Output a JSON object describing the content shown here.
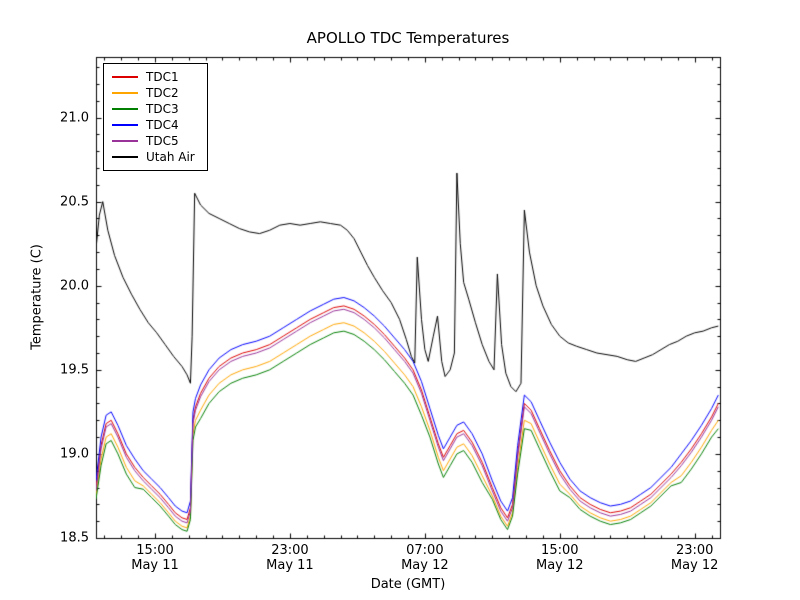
{
  "chart_data": {
    "type": "line",
    "title": "APOLLO TDC Temperatures",
    "xlabel": "Date (GMT)",
    "ylabel": "Temperature (C)",
    "x_encoding": "hours since May 11 00:00 GMT",
    "xlim": [
      11.5,
      48.5
    ],
    "ylim": [
      18.5,
      21.36
    ],
    "grid": false,
    "legend_position": "upper left",
    "yticks": [
      {
        "value": 18.5,
        "label": "18.5"
      },
      {
        "value": 19.0,
        "label": "19.0"
      },
      {
        "value": 19.5,
        "label": "19.5"
      },
      {
        "value": 20.0,
        "label": "20.0"
      },
      {
        "value": 20.5,
        "label": "20.5"
      },
      {
        "value": 21.0,
        "label": "21.0"
      }
    ],
    "xticks": [
      {
        "value": 15,
        "label": "15:00",
        "sublabel": "May 11"
      },
      {
        "value": 23,
        "label": "23:00",
        "sublabel": "May 11"
      },
      {
        "value": 31,
        "label": "07:00",
        "sublabel": "May 12"
      },
      {
        "value": 39,
        "label": "15:00",
        "sublabel": "May 12"
      },
      {
        "value": 47,
        "label": "23:00",
        "sublabel": "May 12"
      }
    ],
    "x_minor_tick_every_hours": 1,
    "y_minor_tick_every": 0.1,
    "shared_x": [
      11.5,
      11.8,
      12.1,
      12.4,
      12.8,
      13.3,
      13.8,
      14.3,
      14.8,
      15.3,
      15.8,
      16.2,
      16.6,
      16.9,
      17.1,
      17.25,
      17.4,
      17.7,
      18.2,
      18.8,
      19.5,
      20.2,
      21.0,
      21.8,
      22.6,
      23.4,
      24.2,
      25.0,
      25.6,
      26.2,
      26.8,
      27.4,
      28.0,
      28.6,
      29.2,
      29.8,
      30.3,
      30.8,
      31.3,
      31.8,
      32.1,
      32.5,
      32.9,
      33.3,
      33.8,
      34.4,
      35.0,
      35.5,
      35.9,
      36.2,
      36.5,
      36.9,
      37.3,
      37.8,
      38.4,
      39.0,
      39.6,
      40.2,
      40.8,
      41.4,
      42.0,
      42.6,
      43.2,
      43.8,
      44.4,
      45.0,
      45.6,
      46.2,
      46.8,
      47.4,
      48.0,
      48.4
    ],
    "series": [
      {
        "name": "TDC1",
        "color": "#dd0000",
        "y": [
          18.8,
          19.05,
          19.18,
          19.2,
          19.12,
          19.0,
          18.92,
          18.86,
          18.81,
          18.76,
          18.7,
          18.65,
          18.62,
          18.61,
          18.68,
          19.2,
          19.28,
          19.36,
          19.45,
          19.52,
          19.57,
          19.6,
          19.62,
          19.65,
          19.7,
          19.75,
          19.8,
          19.84,
          19.87,
          19.88,
          19.86,
          19.82,
          19.77,
          19.71,
          19.64,
          19.57,
          19.5,
          19.38,
          19.22,
          19.06,
          18.98,
          19.05,
          19.12,
          19.14,
          19.07,
          18.95,
          18.8,
          18.68,
          18.62,
          18.7,
          19.0,
          19.3,
          19.26,
          19.15,
          19.02,
          18.9,
          18.81,
          18.74,
          18.7,
          18.67,
          18.65,
          18.66,
          18.68,
          18.72,
          18.76,
          18.82,
          18.88,
          18.95,
          19.03,
          19.12,
          19.22,
          19.3
        ]
      },
      {
        "name": "TDC2",
        "color": "#ffa500",
        "y": [
          18.75,
          18.97,
          19.1,
          19.12,
          19.04,
          18.92,
          18.84,
          18.81,
          18.76,
          18.71,
          18.65,
          18.6,
          18.57,
          18.56,
          18.63,
          19.12,
          19.2,
          19.26,
          19.35,
          19.42,
          19.47,
          19.5,
          19.52,
          19.55,
          19.6,
          19.65,
          19.7,
          19.74,
          19.77,
          19.78,
          19.76,
          19.72,
          19.67,
          19.61,
          19.54,
          19.47,
          19.4,
          19.28,
          19.14,
          18.98,
          18.9,
          18.97,
          19.04,
          19.06,
          18.99,
          18.87,
          18.75,
          18.63,
          18.57,
          18.65,
          18.92,
          19.2,
          19.18,
          19.07,
          18.94,
          18.82,
          18.76,
          18.69,
          18.65,
          18.62,
          18.6,
          18.61,
          18.63,
          18.67,
          18.71,
          18.77,
          18.83,
          18.87,
          18.95,
          19.04,
          19.14,
          19.2
        ]
      },
      {
        "name": "TDC3",
        "color": "#007f00",
        "y": [
          18.73,
          18.93,
          19.06,
          19.08,
          19.0,
          18.88,
          18.8,
          18.79,
          18.74,
          18.69,
          18.63,
          18.58,
          18.55,
          18.54,
          18.61,
          19.08,
          19.16,
          19.21,
          19.3,
          19.37,
          19.42,
          19.45,
          19.47,
          19.5,
          19.55,
          19.6,
          19.65,
          19.69,
          19.72,
          19.73,
          19.71,
          19.67,
          19.62,
          19.56,
          19.49,
          19.42,
          19.35,
          19.23,
          19.1,
          18.94,
          18.86,
          18.93,
          19.0,
          19.02,
          18.95,
          18.83,
          18.73,
          18.61,
          18.55,
          18.63,
          18.88,
          19.15,
          19.14,
          19.03,
          18.9,
          18.78,
          18.74,
          18.67,
          18.63,
          18.6,
          18.58,
          18.59,
          18.61,
          18.65,
          18.69,
          18.75,
          18.81,
          18.83,
          18.91,
          19.0,
          19.1,
          19.15
        ]
      },
      {
        "name": "TDC4",
        "color": "#0000ff",
        "y": [
          18.84,
          19.1,
          19.23,
          19.25,
          19.17,
          19.05,
          18.97,
          18.9,
          18.85,
          18.8,
          18.74,
          18.69,
          18.66,
          18.65,
          18.72,
          19.25,
          19.33,
          19.41,
          19.5,
          19.57,
          19.62,
          19.65,
          19.67,
          19.7,
          19.75,
          19.8,
          19.85,
          19.89,
          19.92,
          19.93,
          19.91,
          19.87,
          19.82,
          19.76,
          19.69,
          19.62,
          19.55,
          19.43,
          19.27,
          19.11,
          19.03,
          19.1,
          19.17,
          19.19,
          19.12,
          19.0,
          18.84,
          18.72,
          18.66,
          18.74,
          19.05,
          19.35,
          19.31,
          19.2,
          19.07,
          18.95,
          18.85,
          18.78,
          18.74,
          18.71,
          18.69,
          18.7,
          18.72,
          18.76,
          18.8,
          18.86,
          18.92,
          19.0,
          19.08,
          19.17,
          19.27,
          19.35
        ]
      },
      {
        "name": "TDC5",
        "color": "#993399",
        "y": [
          18.78,
          19.03,
          19.16,
          19.18,
          19.1,
          18.98,
          18.9,
          18.84,
          18.79,
          18.74,
          18.68,
          18.63,
          18.6,
          18.59,
          18.66,
          19.18,
          19.26,
          19.34,
          19.43,
          19.5,
          19.55,
          19.58,
          19.6,
          19.63,
          19.68,
          19.73,
          19.78,
          19.82,
          19.85,
          19.86,
          19.84,
          19.8,
          19.75,
          19.69,
          19.62,
          19.55,
          19.48,
          19.36,
          19.2,
          19.04,
          18.96,
          19.03,
          19.1,
          19.12,
          19.05,
          18.93,
          18.78,
          18.66,
          18.6,
          18.68,
          18.98,
          19.28,
          19.24,
          19.13,
          19.0,
          18.88,
          18.79,
          18.72,
          18.68,
          18.65,
          18.63,
          18.64,
          18.66,
          18.7,
          18.74,
          18.8,
          18.86,
          18.93,
          19.01,
          19.1,
          19.2,
          19.28
        ]
      },
      {
        "name": "Utah Air",
        "color": "#000000",
        "x": [
          11.5,
          11.7,
          11.9,
          12.2,
          12.6,
          13.1,
          13.6,
          14.1,
          14.6,
          15.1,
          15.6,
          16.1,
          16.6,
          16.9,
          17.1,
          17.2,
          17.35,
          17.7,
          18.2,
          18.8,
          19.4,
          20.0,
          20.6,
          21.2,
          21.8,
          22.4,
          23.0,
          23.6,
          24.2,
          24.8,
          25.4,
          26.0,
          26.4,
          26.8,
          27.2,
          27.6,
          28.0,
          28.5,
          29.0,
          29.5,
          29.9,
          30.2,
          30.4,
          30.55,
          30.8,
          31.0,
          31.2,
          31.5,
          31.75,
          32.0,
          32.2,
          32.5,
          32.75,
          32.9,
          33.1,
          33.3,
          33.6,
          34.0,
          34.4,
          34.8,
          35.1,
          35.3,
          35.55,
          35.8,
          36.1,
          36.4,
          36.7,
          36.9,
          37.2,
          37.6,
          38.0,
          38.5,
          39.0,
          39.5,
          40.0,
          40.6,
          41.2,
          41.8,
          42.4,
          43.0,
          43.5,
          44.0,
          44.5,
          45.0,
          45.5,
          46.0,
          46.5,
          47.0,
          47.5,
          48.0,
          48.4
        ],
        "y": [
          20.22,
          20.42,
          20.5,
          20.33,
          20.18,
          20.05,
          19.95,
          19.86,
          19.78,
          19.72,
          19.65,
          19.58,
          19.52,
          19.47,
          19.42,
          19.7,
          20.55,
          20.48,
          20.43,
          20.4,
          20.37,
          20.34,
          20.32,
          20.31,
          20.33,
          20.36,
          20.37,
          20.36,
          20.37,
          20.38,
          20.37,
          20.36,
          20.33,
          20.28,
          20.2,
          20.12,
          20.05,
          19.97,
          19.9,
          19.8,
          19.68,
          19.58,
          19.54,
          20.17,
          19.8,
          19.62,
          19.55,
          19.7,
          19.82,
          19.55,
          19.46,
          19.5,
          19.6,
          20.67,
          20.25,
          20.02,
          19.92,
          19.78,
          19.65,
          19.55,
          19.5,
          20.07,
          19.65,
          19.48,
          19.4,
          19.37,
          19.42,
          20.45,
          20.2,
          20.0,
          19.88,
          19.77,
          19.7,
          19.66,
          19.64,
          19.62,
          19.6,
          19.59,
          19.58,
          19.56,
          19.55,
          19.57,
          19.59,
          19.62,
          19.65,
          19.67,
          19.7,
          19.72,
          19.73,
          19.75,
          19.76
        ]
      }
    ]
  }
}
